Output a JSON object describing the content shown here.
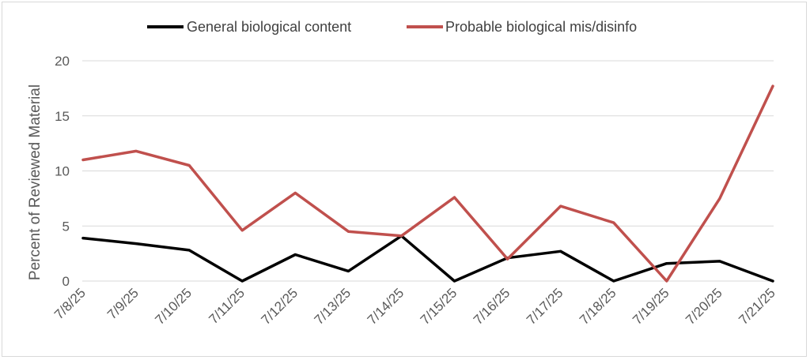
{
  "chart_data": {
    "type": "line",
    "title": "",
    "xlabel": "",
    "ylabel": "Percent of Reviewed Material",
    "ylim": [
      0,
      20
    ],
    "yticks": [
      0,
      5,
      10,
      15,
      20
    ],
    "grid": true,
    "legend_position": "top",
    "categories": [
      "7/8/25",
      "7/9/25",
      "7/10/25",
      "7/11/25",
      "7/12/25",
      "7/13/25",
      "7/14/25",
      "7/15/25",
      "7/16/25",
      "7/17/25",
      "7/18/25",
      "7/19/25",
      "7/20/25",
      "7/21/25"
    ],
    "series": [
      {
        "name": "General biological content",
        "color": "#000000",
        "values": [
          3.9,
          3.4,
          2.8,
          0,
          2.4,
          0.9,
          4.1,
          0,
          2.1,
          2.7,
          0,
          1.6,
          1.8,
          0
        ]
      },
      {
        "name": "Probable biological mis/disinfo",
        "color": "#c0504d",
        "values": [
          11.0,
          11.8,
          10.5,
          4.6,
          8.0,
          4.5,
          4.1,
          7.6,
          2.0,
          6.8,
          5.3,
          0,
          7.5,
          17.7
        ]
      }
    ]
  }
}
